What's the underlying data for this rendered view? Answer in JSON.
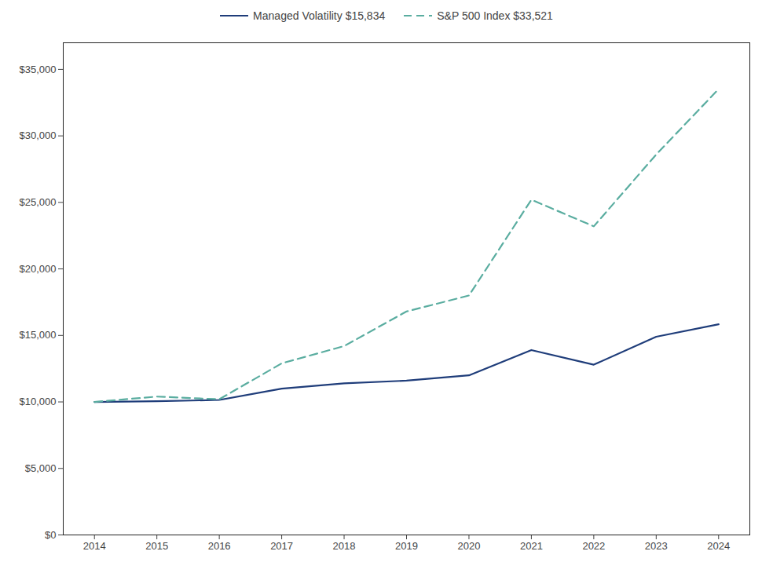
{
  "chart_data": {
    "type": "line",
    "x": [
      2014,
      2015,
      2016,
      2017,
      2018,
      2019,
      2020,
      2021,
      2022,
      2023,
      2024
    ],
    "series": [
      {
        "name": "Managed Volatility $15,834",
        "color": "#1f3d7a",
        "line_style": "solid",
        "values": [
          10000,
          10050,
          10150,
          11000,
          11400,
          11600,
          12000,
          13900,
          12800,
          14900,
          15834
        ]
      },
      {
        "name": "S&P 500 Index $33,521",
        "color": "#5aada0",
        "line_style": "dashed",
        "values": [
          10000,
          10400,
          10200,
          12900,
          14200,
          16800,
          18000,
          25200,
          23200,
          28600,
          33521
        ]
      }
    ],
    "xlim": [
      2013.5,
      2024.5
    ],
    "xticks": [
      2014,
      2015,
      2016,
      2017,
      2018,
      2019,
      2020,
      2021,
      2022,
      2023,
      2024
    ],
    "ylim": [
      0,
      37000
    ],
    "yticks": [
      {
        "value": 0,
        "label": "$0"
      },
      {
        "value": 5000,
        "label": "$5,000"
      },
      {
        "value": 10000,
        "label": "$10,000"
      },
      {
        "value": 15000,
        "label": "$15,000"
      },
      {
        "value": 20000,
        "label": "$20,000"
      },
      {
        "value": 25000,
        "label": "$25,000"
      },
      {
        "value": 30000,
        "label": "$30,000"
      },
      {
        "value": 35000,
        "label": "$35,000"
      }
    ],
    "grid": false,
    "legend": "top"
  }
}
